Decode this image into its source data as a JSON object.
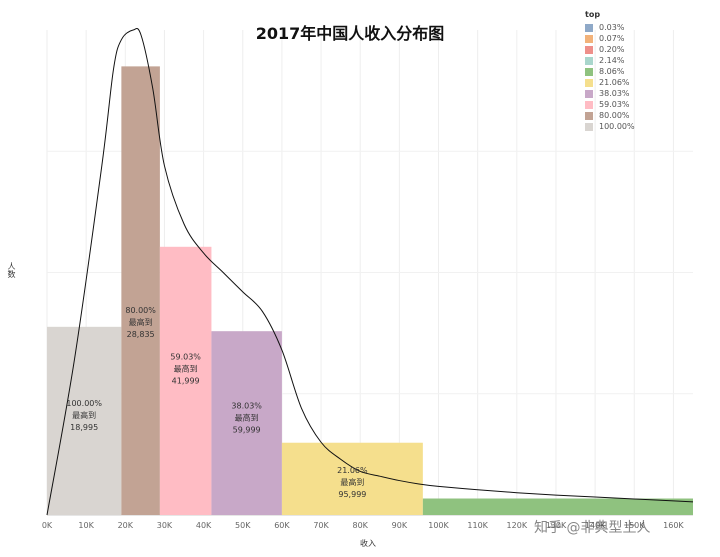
{
  "chart_data": {
    "type": "bar",
    "title": "2017年中国人收入分布图",
    "xlabel": "收入",
    "ylabel": "人数",
    "legend_title": "top",
    "legend_placement": "top-right",
    "x_ticks": [
      "0K",
      "10K",
      "20K",
      "30K",
      "40K",
      "50K",
      "60K",
      "70K",
      "80K",
      "90K",
      "100K",
      "110K",
      "120K",
      "130K",
      "140K",
      "150K",
      "160K"
    ],
    "x_range": [
      0,
      165000
    ],
    "y_range": [
      0,
      100
    ],
    "grid": true,
    "legend": [
      {
        "label": "0.03%",
        "color": "#8fa9c8"
      },
      {
        "label": "0.07%",
        "color": "#f2b27a"
      },
      {
        "label": "0.20%",
        "color": "#ee8f8a"
      },
      {
        "label": "2.14%",
        "color": "#a9d6cc"
      },
      {
        "label": "8.06%",
        "color": "#8fc27f"
      },
      {
        "label": "21.06%",
        "color": "#f5df8d"
      },
      {
        "label": "38.03%",
        "color": "#c8a8c8"
      },
      {
        "label": "59.03%",
        "color": "#ffbcc4"
      },
      {
        "label": "80.00%",
        "color": "#c2a394"
      },
      {
        "label": "100.00%",
        "color": "#d9d5d1"
      }
    ],
    "bars": [
      {
        "label": "100.00%",
        "upper_label": "最高到",
        "max_value": "18,995",
        "x_start": 0,
        "x_end": 18995,
        "height": 38.8,
        "color": "#d9d5d1"
      },
      {
        "label": "80.00%",
        "upper_label": "最高到",
        "max_value": "28,835",
        "x_start": 18995,
        "x_end": 28835,
        "height": 92.5,
        "color": "#c2a394"
      },
      {
        "label": "59.03%",
        "upper_label": "最高到",
        "max_value": "41,999",
        "x_start": 28835,
        "x_end": 41999,
        "height": 55.3,
        "color": "#ffbcc4"
      },
      {
        "label": "38.03%",
        "upper_label": "最高到",
        "max_value": "59,999",
        "x_start": 41999,
        "x_end": 59999,
        "height": 37.9,
        "color": "#c8a8c8"
      },
      {
        "label": "21.06%",
        "upper_label": "最高到",
        "max_value": "95,999",
        "x_start": 59999,
        "x_end": 95999,
        "height": 14.9,
        "color": "#f5df8d"
      },
      {
        "label": "8.06%",
        "upper_label": "",
        "max_value": "",
        "x_start": 95999,
        "x_end": 165000,
        "height": 3.4,
        "color": "#8fc27f"
      }
    ],
    "curve": {
      "x": [
        0,
        7000,
        14000,
        17000,
        19000,
        22000,
        24000,
        27000,
        30000,
        35000,
        40000,
        45000,
        50000,
        55000,
        60000,
        65000,
        70000,
        75000,
        80000,
        85000,
        90000,
        95000,
        100000,
        110000,
        120000,
        130000,
        140000,
        150000,
        160000,
        165000
      ],
      "y": [
        0,
        32,
        72,
        92,
        98,
        100,
        99,
        88,
        72,
        60,
        54,
        50,
        46,
        42,
        34,
        22,
        15,
        11.5,
        9,
        8,
        7.1,
        6.4,
        5.9,
        5.2,
        4.6,
        4.1,
        3.7,
        3.3,
        2.9,
        2.7
      ]
    }
  },
  "watermark": "知乎 @非典型土人"
}
